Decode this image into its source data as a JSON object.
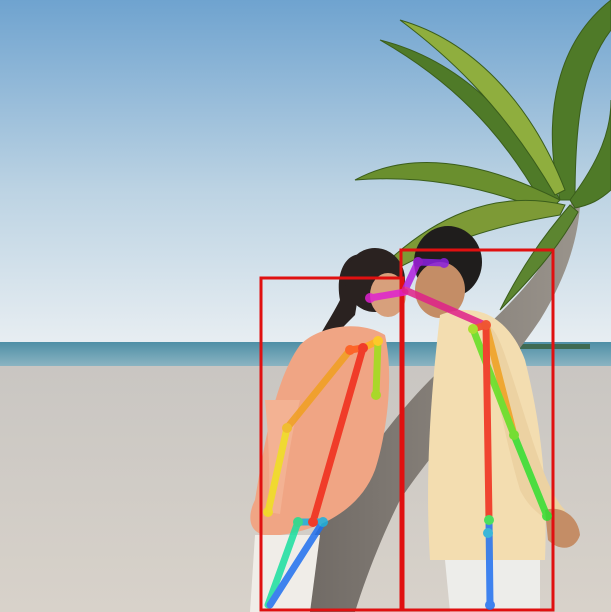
{
  "image": {
    "subject": "beach-pose-estimation",
    "colors": {
      "box": "#e01010",
      "sky_top": "#6fa3cf",
      "sky_bottom": "#e8eef2",
      "sea": "#4f8fa6",
      "sand": "#d2cdc6"
    }
  },
  "detections": [
    {
      "id": "person-woman",
      "label": ""
    },
    {
      "id": "person-man",
      "label": ""
    }
  ]
}
